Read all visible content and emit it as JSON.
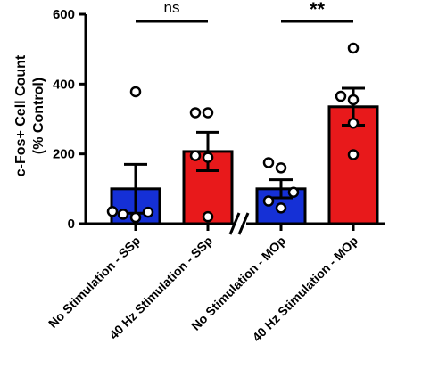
{
  "chart_data": {
    "type": "bar",
    "ylabel": [
      "c-Fos+ Cell Count",
      "(% Control)"
    ],
    "ylim": [
      0,
      600
    ],
    "yticks": [
      0,
      200,
      400,
      600
    ],
    "categories": [
      "No Stimulation - SSp",
      "40 Hz Stimulation - SSp",
      "No Stimulation - MOp",
      "40 Hz Stimulation - MOp"
    ],
    "values": [
      100,
      207,
      100,
      335
    ],
    "error_sem": [
      70,
      55,
      26,
      53
    ],
    "bar_colors": [
      "#1530d6",
      "#e8191b",
      "#1530d6",
      "#e8191b"
    ],
    "points": [
      [
        18,
        27,
        35,
        33,
        378
      ],
      [
        20,
        190,
        195,
        318,
        318
      ],
      [
        45,
        65,
        90,
        160,
        175
      ],
      [
        198,
        288,
        355,
        365,
        503
      ]
    ],
    "axis_break_between": [
      1,
      2
    ],
    "significance": [
      {
        "between": [
          0,
          1
        ],
        "label": "ns"
      },
      {
        "between": [
          2,
          3
        ],
        "label": "**"
      }
    ]
  }
}
